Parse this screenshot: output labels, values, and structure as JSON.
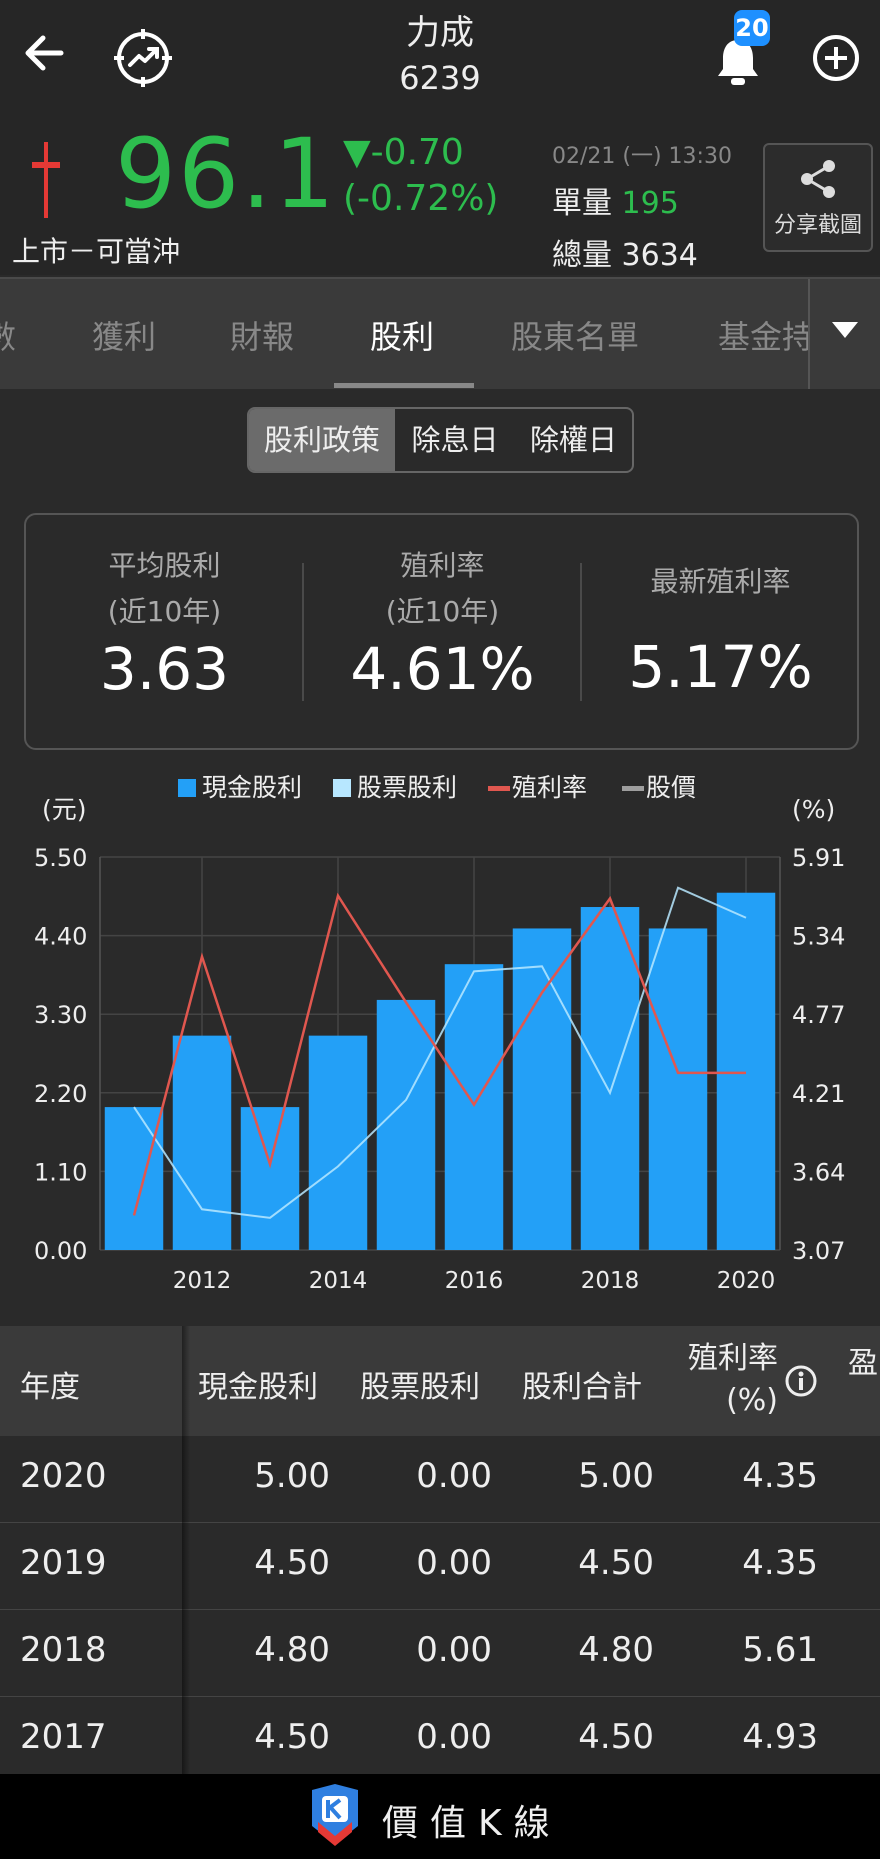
{
  "header": {
    "stock_name": "力成",
    "stock_code": "6239",
    "notification_count": "20"
  },
  "quote": {
    "price": "96.1",
    "change": "▼-0.70",
    "change_pct": "(-0.72%)",
    "market_note": "上市－可當沖",
    "time": "02/21 (一) 13:30",
    "unit_volume_label": "單量",
    "unit_volume": "195",
    "total_volume_label": "總量",
    "total_volume": "3634",
    "share_label": "分享截圖"
  },
  "tabs": [
    "數",
    "獲利",
    "財報",
    "股利",
    "股東名單",
    "基金持"
  ],
  "active_tab": "股利",
  "segments": [
    "股利政策",
    "除息日",
    "除權日"
  ],
  "stats": [
    {
      "label1": "平均股利",
      "label2": "(近10年)",
      "value": "3.63"
    },
    {
      "label1": "殖利率",
      "label2": "(近10年)",
      "value": "4.61%"
    },
    {
      "label1": "最新殖利率",
      "label2": "",
      "value": "5.17%"
    }
  ],
  "colors": {
    "cash": "#23a0f7",
    "stock": "#b7e7ff",
    "yield": "#e0574f",
    "price": "#9e9e9e",
    "up_green": "#2dbd4e"
  },
  "chart_data": {
    "type": "bar",
    "legend": [
      "現金股利",
      "股票股利",
      "殖利率",
      "股價"
    ],
    "left_unit": "(元)",
    "right_unit": "(%)",
    "left_ticks": [
      "5.50",
      "4.40",
      "3.30",
      "2.20",
      "1.10",
      "0.00"
    ],
    "right_ticks": [
      "5.91",
      "5.34",
      "4.77",
      "4.21",
      "3.64",
      "3.07"
    ],
    "x_tick_labels": [
      "2012",
      "2014",
      "2016",
      "2018",
      "2020"
    ],
    "ylim_left": [
      0,
      5.5
    ],
    "ylim_right": [
      3.07,
      5.91
    ],
    "years": [
      2011,
      2012,
      2013,
      2014,
      2015,
      2016,
      2017,
      2018,
      2019,
      2020
    ],
    "series": [
      {
        "name": "現金股利",
        "kind": "bar",
        "values": [
          2.0,
          3.0,
          2.0,
          3.0,
          3.5,
          4.0,
          4.5,
          4.8,
          4.5,
          5.0
        ]
      },
      {
        "name": "殖利率",
        "kind": "line",
        "values": [
          3.32,
          5.19,
          3.69,
          5.63,
          4.86,
          4.12,
          4.93,
          5.61,
          4.35,
          4.35
        ]
      },
      {
        "name": "股價",
        "kind": "line",
        "values": [
          2.0,
          0.57,
          0.45,
          1.17,
          2.1,
          3.9,
          3.97,
          2.2,
          5.07,
          4.65
        ]
      }
    ],
    "grid": true
  },
  "table": {
    "headers": [
      "年度",
      "現金股利",
      "股票股利",
      "股利合計",
      "殖利率\n(%)",
      "盈"
    ],
    "rows": [
      [
        "2020",
        "5.00",
        "0.00",
        "5.00",
        "4.35"
      ],
      [
        "2019",
        "4.50",
        "0.00",
        "4.50",
        "4.35"
      ],
      [
        "2018",
        "4.80",
        "0.00",
        "4.80",
        "5.61"
      ],
      [
        "2017",
        "4.50",
        "0.00",
        "4.50",
        "4.93"
      ]
    ]
  },
  "footer": {
    "brand": "價值K線"
  }
}
